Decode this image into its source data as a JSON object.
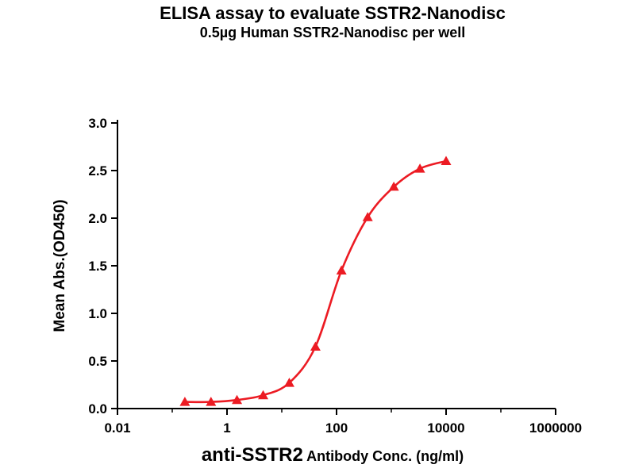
{
  "chart_data": {
    "type": "line",
    "title": "ELISA assay to evaluate SSTR2-Nanodisc",
    "subtitle": "0.5µg Human SSTR2-Nanodisc per well",
    "xlabel_emphasis": "anti-SSTR2",
    "xlabel_rest": " Antibody Conc. (ng/ml)",
    "ylabel": "Mean Abs.(OD450)",
    "x_scale": "log",
    "xlim": [
      0.01,
      1000000
    ],
    "ylim": [
      0.0,
      3.0
    ],
    "grid": false,
    "legend_position": "none",
    "axis_color": "#000000",
    "x_ticks": [
      {
        "v": 0.01,
        "label": "0.01"
      },
      {
        "v": 1,
        "label": "1"
      },
      {
        "v": 100,
        "label": "100"
      },
      {
        "v": 10000,
        "label": "10000"
      },
      {
        "v": 1000000,
        "label": "1000000"
      }
    ],
    "x_minor_ticks": [
      0.1,
      10,
      1000,
      100000
    ],
    "y_ticks": [
      {
        "v": 0.0,
        "label": "0.0"
      },
      {
        "v": 0.5,
        "label": "0.5"
      },
      {
        "v": 1.0,
        "label": "1.0"
      },
      {
        "v": 1.5,
        "label": "1.5"
      },
      {
        "v": 2.0,
        "label": "2.0"
      },
      {
        "v": 2.5,
        "label": "2.5"
      },
      {
        "v": 3.0,
        "label": "3.0"
      }
    ],
    "series": [
      {
        "name": "0.5µg Human SSTR2-Nanodisc per well",
        "marker": "triangle-up",
        "color": "#EC1B23",
        "points": [
          {
            "x": 0.17,
            "y": 0.07
          },
          {
            "x": 0.51,
            "y": 0.07
          },
          {
            "x": 1.52,
            "y": 0.09
          },
          {
            "x": 4.57,
            "y": 0.14
          },
          {
            "x": 13.7,
            "y": 0.27
          },
          {
            "x": 41.2,
            "y": 0.65
          },
          {
            "x": 123,
            "y": 1.45
          },
          {
            "x": 370,
            "y": 2.01
          },
          {
            "x": 1111,
            "y": 2.33
          },
          {
            "x": 3333,
            "y": 2.52
          },
          {
            "x": 10000,
            "y": 2.6
          }
        ]
      }
    ]
  }
}
